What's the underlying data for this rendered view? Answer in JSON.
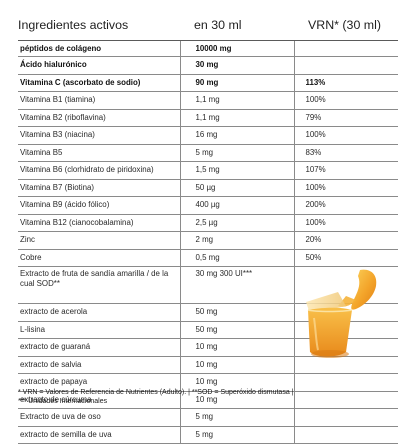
{
  "table": {
    "headers": {
      "ingredient": "Ingredientes activos",
      "amount": "en 30 ml",
      "vrn": "VRN* (30 ml)"
    },
    "rows": [
      {
        "name": "péptidos de colágeno",
        "amount": "10000 mg",
        "vrn": "",
        "bold": true
      },
      {
        "name": "Ácido hialurónico",
        "amount": "30 mg",
        "vrn": "",
        "bold": true
      },
      {
        "name": "Vitamina C (ascorbato de sodio)",
        "amount": "90 mg",
        "vrn": "113%",
        "bold": true
      },
      {
        "name": "Vitamina B1 (tiamina)",
        "amount": "1,1 mg",
        "vrn": "100%"
      },
      {
        "name": "Vitamina B2 (riboflavina)",
        "amount": "1,1 mg",
        "vrn": "79%"
      },
      {
        "name": "Vitamina B3 (niacina)",
        "amount": "16 mg",
        "vrn": "100%"
      },
      {
        "name": "Vitamina B5",
        "amount": "5 mg",
        "vrn": "83%"
      },
      {
        "name": "Vitamina B6 (clorhidrato de piridoxina)",
        "amount": "1,5 mg",
        "vrn": "107%"
      },
      {
        "name": "Vitamina B7 (Biotina)",
        "amount": "50 µg",
        "vrn": "100%"
      },
      {
        "name": "Vitamina B9 (ácido fólico)",
        "amount": "400 µg",
        "vrn": "200%"
      },
      {
        "name": "Vitamina B12 (cianocobalamina)",
        "amount": "2,5 µg",
        "vrn": "100%"
      },
      {
        "name": "Zinc",
        "amount": "2 mg",
        "vrn": "20%"
      },
      {
        "name": "Cobre",
        "amount": "0,5 mg",
        "vrn": "50%"
      },
      {
        "name": "Extracto de fruta de sandía amarilla / de la cual SOD**",
        "amount": "30 mg 300 UI***",
        "vrn": "",
        "tall": true
      },
      {
        "name": "extracto de acerola",
        "amount": "50 mg",
        "vrn": ""
      },
      {
        "name": "L-lisina",
        "amount": "50 mg",
        "vrn": ""
      },
      {
        "name": "extracto de guaraná",
        "amount": "10 mg",
        "vrn": ""
      },
      {
        "name": "extracto de salvia",
        "amount": "10 mg",
        "vrn": ""
      },
      {
        "name": "extracto de papaya",
        "amount": "10 mg",
        "vrn": ""
      },
      {
        "name": "extracto de cúrcuma",
        "amount": "10 mg",
        "vrn": ""
      },
      {
        "name": "Extracto de uva de oso",
        "amount": "5 mg",
        "vrn": ""
      },
      {
        "name": "extracto de semilla de uva",
        "amount": "5 mg",
        "vrn": ""
      }
    ]
  },
  "footnotes": {
    "line1": "* VRN = Valores de Referencia de Nutrientes (Adulto). | **SOD = Superóxido dismutasa |",
    "line2": "*** Unidades Internacionales"
  },
  "illustration": {
    "icon": "orange-liquid-pour-icon",
    "colors": {
      "liquid_light": "#f7b733",
      "liquid_dark": "#e8891a",
      "cup": "#f1d9a6"
    }
  }
}
